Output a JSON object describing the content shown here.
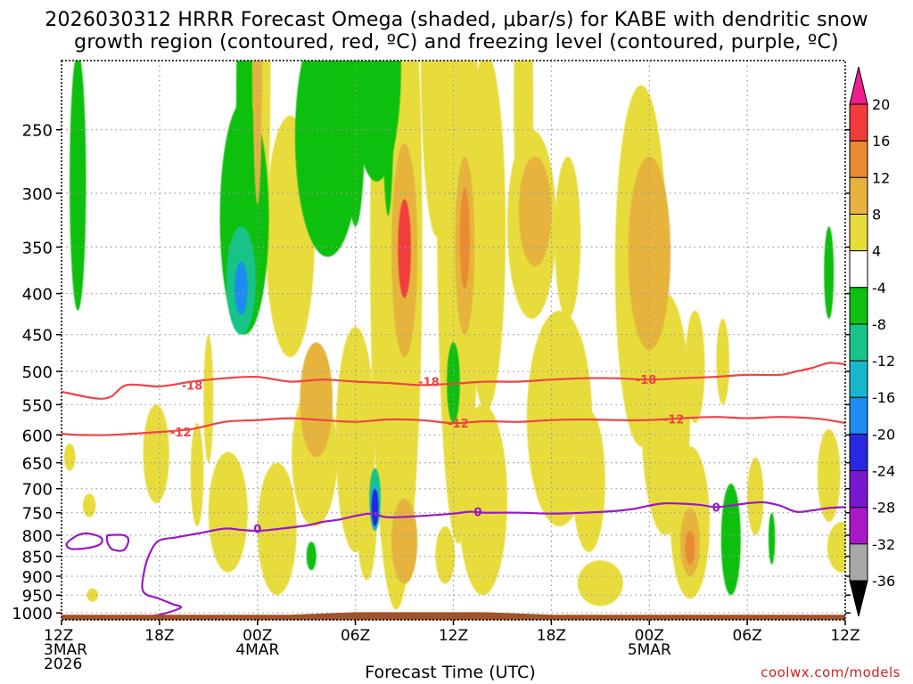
{
  "title": {
    "line1": "2026030312 HRRR Forecast Omega (shaded, μbar/s) for KABE with dendritic snow",
    "line2": "growth region (contoured, red, ºC) and freezing level (contoured, purple, ºC)"
  },
  "credit": "coolwx.com/models",
  "colors": {
    "dgz": "#ee4444",
    "freezing": "#9a18c8",
    "ground": "#a0522d",
    "grid": "#999999"
  },
  "chart_data": {
    "type": "heatmap",
    "xlabel": "Forecast Time (UTC)",
    "ylabel": "Pressure (hPa)",
    "xlim_hours": [
      0,
      48
    ],
    "ylim_hpa": [
      1020,
      205
    ],
    "y_ticks": [
      250,
      300,
      350,
      400,
      450,
      500,
      550,
      600,
      650,
      700,
      750,
      800,
      850,
      900,
      950,
      1000
    ],
    "x_ticks": [
      {
        "hour": 0,
        "lines": [
          "12Z",
          "3MAR",
          "2026"
        ]
      },
      {
        "hour": 6,
        "lines": [
          "18Z"
        ]
      },
      {
        "hour": 12,
        "lines": [
          "00Z",
          "4MAR"
        ]
      },
      {
        "hour": 18,
        "lines": [
          "06Z"
        ]
      },
      {
        "hour": 24,
        "lines": [
          "12Z"
        ]
      },
      {
        "hour": 30,
        "lines": [
          "18Z"
        ]
      },
      {
        "hour": 36,
        "lines": [
          "00Z",
          "5MAR"
        ]
      },
      {
        "hour": 42,
        "lines": [
          "06Z"
        ]
      },
      {
        "hour": 48,
        "lines": [
          "12Z"
        ]
      }
    ],
    "colorbar": {
      "labels": [
        "20",
        "16",
        "12",
        "8",
        "4",
        "-4",
        "-8",
        "-12",
        "-16",
        "-20",
        "-24",
        "-28",
        "-32",
        "-36"
      ],
      "bins": [
        {
          "range": [
            16,
            20
          ],
          "color": "#f23c3c"
        },
        {
          "range": [
            12,
            16
          ],
          "color": "#ea8a30"
        },
        {
          "range": [
            8,
            12
          ],
          "color": "#e6b43c"
        },
        {
          "range": [
            4,
            8
          ],
          "color": "#e8dc3c"
        },
        {
          "range": [
            -4,
            4
          ],
          "color": "#ffffff"
        },
        {
          "range": [
            -8,
            -4
          ],
          "color": "#10c010"
        },
        {
          "range": [
            -12,
            -8
          ],
          "color": "#18c488"
        },
        {
          "range": [
            -16,
            -12
          ],
          "color": "#18b8cc"
        },
        {
          "range": [
            -20,
            -16
          ],
          "color": "#1e8cf0"
        },
        {
          "range": [
            -24,
            -20
          ],
          "color": "#2828e0"
        },
        {
          "range": [
            -28,
            -24
          ],
          "color": "#7818d0"
        },
        {
          "range": [
            -32,
            -28
          ],
          "color": "#a818c8"
        },
        {
          "range": [
            -36,
            -32
          ],
          "color": "#a8a8a8"
        }
      ],
      "top_arrow_color": "#ee1e8c",
      "bottom_arrow_color": "#000000"
    },
    "omega_blobs": [
      {
        "t": 1.0,
        "p": 310,
        "dt": 0.5,
        "dp": 110,
        "value": -6
      },
      {
        "t": 0.5,
        "p": 640,
        "dt": 0.35,
        "dp": 25,
        "value": 5
      },
      {
        "t": 1.7,
        "p": 735,
        "dt": 0.4,
        "dp": 25,
        "value": 5
      },
      {
        "t": 1.9,
        "p": 950,
        "dt": 0.35,
        "dp": 18,
        "value": 5
      },
      {
        "t": 5.8,
        "p": 640,
        "dt": 0.8,
        "dp": 90,
        "value": 5
      },
      {
        "t": 9.0,
        "p": 550,
        "dt": 0.3,
        "dp": 100,
        "value": 5
      },
      {
        "t": 10.2,
        "p": 760,
        "dt": 1.2,
        "dp": 130,
        "value": 5
      },
      {
        "t": 11.2,
        "p": 340,
        "dt": 1.5,
        "dp": 110,
        "value": -7
      },
      {
        "t": 11.0,
        "p": 390,
        "dt": 0.9,
        "dp": 60,
        "value": -12
      },
      {
        "t": 11.0,
        "p": 395,
        "dt": 0.4,
        "dp": 30,
        "value": -17
      },
      {
        "t": 12.0,
        "p": 160,
        "dt": 0.8,
        "dp": 220,
        "value": 5
      },
      {
        "t": 12.0,
        "p": 150,
        "dt": 0.3,
        "dp": 160,
        "value": 9
      },
      {
        "t": 14.0,
        "p": 360,
        "dt": 1.5,
        "dp": 120,
        "value": 6
      },
      {
        "t": 13.2,
        "p": 800,
        "dt": 1.2,
        "dp": 150,
        "value": 5
      },
      {
        "t": 15.5,
        "p": 650,
        "dt": 1.4,
        "dp": 130,
        "value": 5
      },
      {
        "t": 15.6,
        "p": 550,
        "dt": 1.0,
        "dp": 90,
        "value": 9
      },
      {
        "t": 15.3,
        "p": 850,
        "dt": 0.3,
        "dp": 35,
        "value": -6
      },
      {
        "t": 16.3,
        "p": 270,
        "dt": 2.0,
        "dp": 90,
        "value": -6
      },
      {
        "t": 18.0,
        "p": 250,
        "dt": 0.6,
        "dp": 80,
        "value": -7
      },
      {
        "t": 18.0,
        "p": 640,
        "dt": 1.2,
        "dp": 200,
        "value": 5
      },
      {
        "t": 18.7,
        "p": 780,
        "dt": 0.6,
        "dp": 130,
        "value": 5
      },
      {
        "t": 19.3,
        "p": 220,
        "dt": 1.5,
        "dp": 70,
        "value": -7
      },
      {
        "t": 20.0,
        "p": 120,
        "dt": 0.4,
        "dp": 200,
        "value": -6
      },
      {
        "t": 20.5,
        "p": 520,
        "dt": 1.6,
        "dp": 470,
        "value": 5
      },
      {
        "t": 19.2,
        "p": 720,
        "dt": 0.35,
        "dp": 60,
        "value": -9
      },
      {
        "t": 19.2,
        "p": 740,
        "dt": 0.3,
        "dp": 50,
        "value": -14
      },
      {
        "t": 19.2,
        "p": 740,
        "dt": 0.22,
        "dp": 40,
        "value": -22
      },
      {
        "t": 21.0,
        "p": 370,
        "dt": 0.8,
        "dp": 110,
        "value": 9
      },
      {
        "t": 21.0,
        "p": 355,
        "dt": 0.4,
        "dp": 50,
        "value": 16
      },
      {
        "t": 21.0,
        "p": 820,
        "dt": 0.8,
        "dp": 100,
        "value": 9
      },
      {
        "t": 23.0,
        "p": 200,
        "dt": 1.0,
        "dp": 140,
        "value": 5
      },
      {
        "t": 24.3,
        "p": 420,
        "dt": 1.3,
        "dp": 400,
        "value": 5
      },
      {
        "t": 24.7,
        "p": 360,
        "dt": 0.6,
        "dp": 90,
        "value": 9
      },
      {
        "t": 24.7,
        "p": 345,
        "dt": 0.3,
        "dp": 50,
        "value": 14
      },
      {
        "t": 24.0,
        "p": 520,
        "dt": 0.4,
        "dp": 60,
        "value": -6
      },
      {
        "t": 26.0,
        "p": 380,
        "dt": 1.2,
        "dp": 180,
        "value": 5
      },
      {
        "t": 25.8,
        "p": 750,
        "dt": 1.5,
        "dp": 200,
        "value": 5
      },
      {
        "t": 28.3,
        "p": 250,
        "dt": 0.6,
        "dp": 100,
        "value": 5
      },
      {
        "t": 28.8,
        "p": 340,
        "dt": 1.5,
        "dp": 90,
        "value": 5
      },
      {
        "t": 29.0,
        "p": 320,
        "dt": 1.0,
        "dp": 50,
        "value": 9
      },
      {
        "t": 31.0,
        "p": 350,
        "dt": 0.8,
        "dp": 80,
        "value": 5
      },
      {
        "t": 30.5,
        "p": 600,
        "dt": 2.0,
        "dp": 180,
        "value": 5
      },
      {
        "t": 32.3,
        "p": 700,
        "dt": 1.0,
        "dp": 140,
        "value": 5
      },
      {
        "t": 35.5,
        "p": 420,
        "dt": 1.6,
        "dp": 200,
        "value": 5
      },
      {
        "t": 36.0,
        "p": 370,
        "dt": 1.3,
        "dp": 100,
        "value": 9
      },
      {
        "t": 37.0,
        "p": 600,
        "dt": 1.5,
        "dp": 200,
        "value": 5
      },
      {
        "t": 38.5,
        "p": 790,
        "dt": 1.2,
        "dp": 170,
        "value": 5
      },
      {
        "t": 38.5,
        "p": 820,
        "dt": 0.6,
        "dp": 80,
        "value": 9
      },
      {
        "t": 38.5,
        "p": 830,
        "dt": 0.3,
        "dp": 40,
        "value": 14
      },
      {
        "t": 38.8,
        "p": 500,
        "dt": 0.6,
        "dp": 80,
        "value": 5
      },
      {
        "t": 40.5,
        "p": 490,
        "dt": 0.4,
        "dp": 60,
        "value": 5
      },
      {
        "t": 41.0,
        "p": 820,
        "dt": 0.6,
        "dp": 130,
        "value": -6
      },
      {
        "t": 42.5,
        "p": 720,
        "dt": 0.5,
        "dp": 80,
        "value": 5
      },
      {
        "t": 43.5,
        "p": 810,
        "dt": 0.2,
        "dp": 60,
        "value": -6
      },
      {
        "t": 47.0,
        "p": 680,
        "dt": 0.7,
        "dp": 90,
        "value": 5
      },
      {
        "t": 47.8,
        "p": 830,
        "dt": 0.9,
        "dp": 60,
        "value": 5
      },
      {
        "t": 47.0,
        "p": 380,
        "dt": 0.3,
        "dp": 50,
        "value": -6
      },
      {
        "t": 11.2,
        "p": 250,
        "dt": 0.5,
        "dp": 100,
        "value": -6
      },
      {
        "t": 8.3,
        "p": 680,
        "dt": 0.4,
        "dp": 100,
        "value": 5
      },
      {
        "t": 23.5,
        "p": 850,
        "dt": 0.6,
        "dp": 70,
        "value": 5
      },
      {
        "t": 33.0,
        "p": 920,
        "dt": 1.4,
        "dp": 60,
        "value": 5
      }
    ],
    "contours": [
      {
        "name": "dgz-minus18",
        "label": "-18",
        "color": "#ee4444",
        "points": [
          [
            0,
            530
          ],
          [
            2,
            540
          ],
          [
            3,
            538
          ],
          [
            4,
            520
          ],
          [
            6,
            522
          ],
          [
            8,
            515
          ],
          [
            10,
            510
          ],
          [
            12,
            508
          ],
          [
            14,
            515
          ],
          [
            16,
            512
          ],
          [
            18,
            515
          ],
          [
            20,
            517
          ],
          [
            22,
            520
          ],
          [
            24,
            518
          ],
          [
            26,
            515
          ],
          [
            28,
            515
          ],
          [
            30,
            512
          ],
          [
            32,
            510
          ],
          [
            34,
            510
          ],
          [
            36,
            512
          ],
          [
            38,
            510
          ],
          [
            40,
            508
          ],
          [
            42,
            505
          ],
          [
            44,
            505
          ],
          [
            45,
            500
          ],
          [
            46,
            495
          ],
          [
            47,
            488
          ],
          [
            48,
            490
          ]
        ],
        "label_at": [
          [
            8,
            520
          ],
          [
            22.5,
            515
          ],
          [
            35.8,
            512
          ]
        ]
      },
      {
        "name": "dgz-minus12",
        "label": "-12",
        "color": "#ee4444",
        "points": [
          [
            0,
            598
          ],
          [
            1,
            600
          ],
          [
            3,
            600
          ],
          [
            6,
            595
          ],
          [
            8,
            590
          ],
          [
            10,
            578
          ],
          [
            12,
            575
          ],
          [
            14,
            572
          ],
          [
            16,
            575
          ],
          [
            18,
            578
          ],
          [
            20,
            574
          ],
          [
            22,
            575
          ],
          [
            24,
            580
          ],
          [
            26,
            577
          ],
          [
            28,
            578
          ],
          [
            30,
            575
          ],
          [
            32,
            574
          ],
          [
            34,
            575
          ],
          [
            36,
            575
          ],
          [
            38,
            572
          ],
          [
            40,
            570
          ],
          [
            42,
            572
          ],
          [
            44,
            570
          ],
          [
            46,
            572
          ],
          [
            47,
            575
          ],
          [
            48,
            580
          ]
        ],
        "label_at": [
          [
            7.3,
            595
          ],
          [
            24.3,
            580
          ],
          [
            37.5,
            573
          ]
        ]
      },
      {
        "name": "freezing-level",
        "label": "0",
        "color": "#9a18c8",
        "points": [
          [
            4.3,
            1015
          ],
          [
            6,
            1005
          ],
          [
            7.3,
            985
          ],
          [
            6.8,
            975
          ],
          [
            6,
            960
          ],
          [
            5,
            940
          ],
          [
            5.1,
            880
          ],
          [
            5.5,
            835
          ],
          [
            6,
            812
          ],
          [
            7,
            805
          ],
          [
            8.5,
            795
          ],
          [
            10,
            785
          ],
          [
            11,
            788
          ],
          [
            12,
            790
          ],
          [
            13,
            787
          ],
          [
            15,
            778
          ],
          [
            16,
            770
          ],
          [
            17,
            765
          ],
          [
            18,
            757
          ],
          [
            19,
            752
          ],
          [
            20,
            760
          ],
          [
            22,
            757
          ],
          [
            24,
            752
          ],
          [
            25,
            748
          ],
          [
            26,
            750
          ],
          [
            28,
            750
          ],
          [
            30,
            752
          ],
          [
            32,
            750
          ],
          [
            34,
            746
          ],
          [
            35,
            742
          ],
          [
            36,
            735
          ],
          [
            37,
            730
          ],
          [
            39,
            733
          ],
          [
            40,
            738
          ],
          [
            41,
            735
          ],
          [
            42,
            730
          ],
          [
            43,
            728
          ],
          [
            44,
            735
          ],
          [
            45,
            748
          ],
          [
            46,
            745
          ],
          [
            47,
            740
          ],
          [
            48,
            738
          ]
        ],
        "label_at": [
          [
            12,
            785
          ],
          [
            25.5,
            748
          ],
          [
            40.1,
            738
          ]
        ]
      },
      {
        "name": "freezing-loop-1",
        "label": "",
        "color": "#9a18c8",
        "points": [
          [
            0.5,
            812
          ],
          [
            1.0,
            800
          ],
          [
            1.6,
            796
          ],
          [
            2.4,
            805
          ],
          [
            2.4,
            820
          ],
          [
            1.6,
            830
          ],
          [
            0.6,
            832
          ],
          [
            0.3,
            822
          ],
          [
            0.5,
            812
          ]
        ],
        "label_at": []
      },
      {
        "name": "freezing-loop-2",
        "label": "",
        "color": "#9a18c8",
        "points": [
          [
            2.8,
            800
          ],
          [
            3.8,
            800
          ],
          [
            4.1,
            812
          ],
          [
            3.8,
            835
          ],
          [
            3.1,
            833
          ],
          [
            2.8,
            815
          ],
          [
            2.8,
            800
          ]
        ],
        "label_at": []
      }
    ],
    "ground": {
      "label": "terrain",
      "p_top_start": 1005,
      "p_top_end": 1003
    }
  }
}
